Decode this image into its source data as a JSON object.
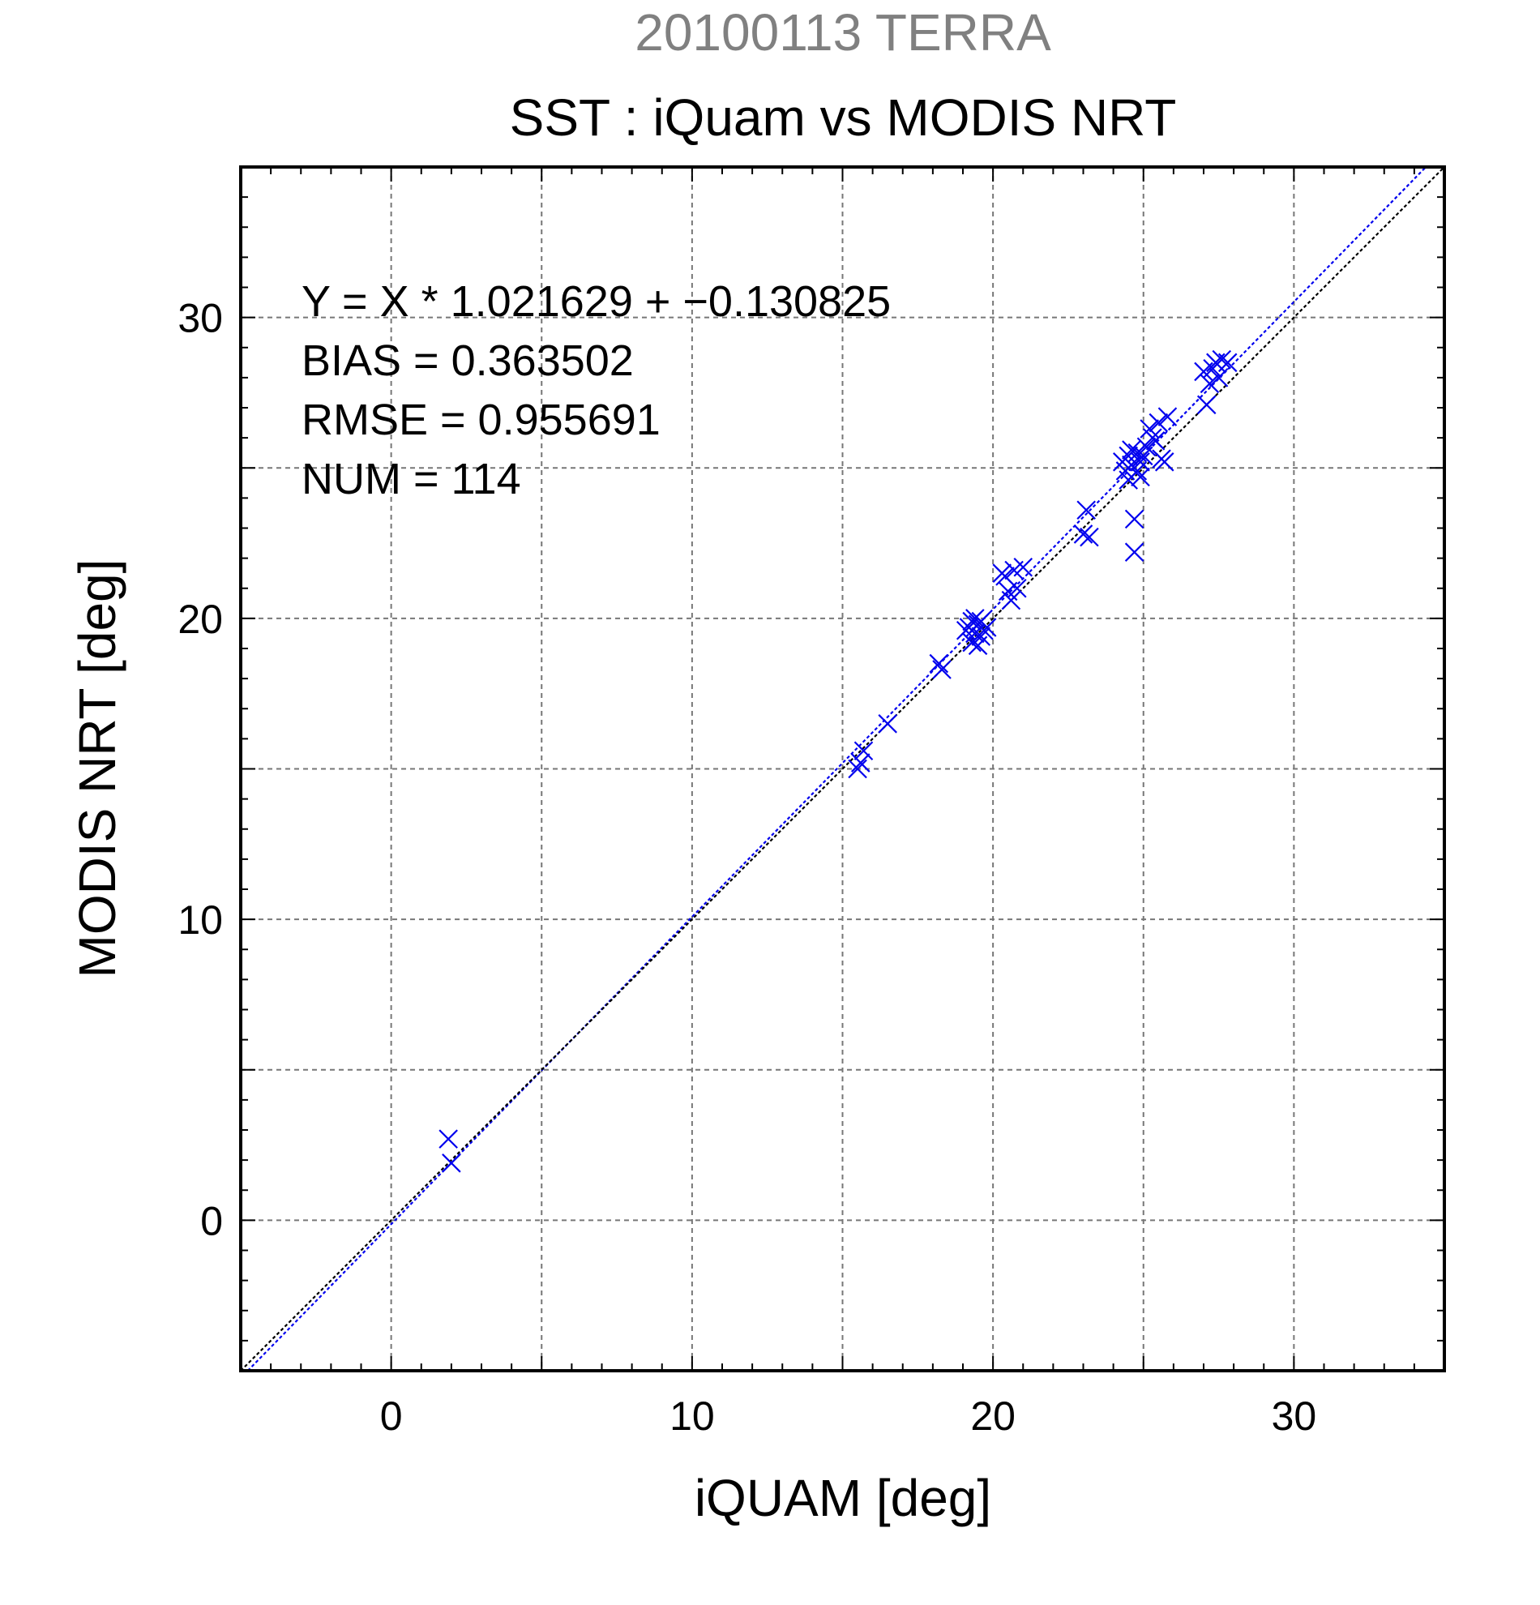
{
  "chart_data": {
    "type": "scatter",
    "title": "20100113 TERRA",
    "subtitle": "SST : iQuam vs MODIS NRT",
    "xlabel": "iQUAM [deg]",
    "ylabel": "MODIS NRT [deg]",
    "xlim": [
      -5,
      35
    ],
    "ylim": [
      -5,
      35
    ],
    "xticks": [
      0,
      10,
      20,
      30
    ],
    "yticks": [
      0,
      10,
      20,
      30
    ],
    "grid": true,
    "annotations": [
      "Y = X * 1.021629 + −0.130825",
      "BIAS = 0.363502",
      "RMSE = 0.955691",
      "NUM = 114"
    ],
    "lines": [
      {
        "name": "regression",
        "slope": 1.021629,
        "intercept": -0.130825,
        "color": "#0000ee",
        "style": "dotted"
      },
      {
        "name": "identity",
        "slope": 1,
        "intercept": 0,
        "color": "#000000",
        "style": "dotted"
      }
    ],
    "marker_color": "#0000ee",
    "series": [
      {
        "marker": "x",
        "x": [
          1.9,
          2.0,
          15.5,
          15.6,
          15.7,
          16.5,
          18.2,
          18.3,
          19.1,
          19.2,
          19.3,
          19.3,
          19.4,
          19.4,
          19.5,
          19.5,
          19.6,
          19.6,
          19.7,
          19.8,
          20.3,
          20.4,
          20.5,
          20.6,
          20.7,
          20.8,
          21.0,
          23.0,
          23.1,
          23.2,
          24.3,
          24.4,
          24.5,
          24.5,
          24.6,
          24.6,
          24.7,
          24.7,
          24.8,
          24.8,
          24.9,
          24.9,
          25.0,
          25.1,
          25.2,
          25.3,
          25.4,
          25.5,
          25.6,
          25.7,
          25.8,
          27.0,
          27.1,
          27.2,
          27.3,
          27.4,
          27.5,
          27.6,
          27.8
        ],
        "y": [
          2.7,
          1.9,
          15.0,
          15.2,
          15.6,
          16.5,
          18.5,
          18.3,
          19.6,
          19.7,
          19.9,
          19.2,
          20.0,
          19.5,
          19.1,
          19.8,
          19.4,
          19.9,
          19.6,
          19.7,
          21.5,
          21.4,
          20.9,
          20.6,
          21.6,
          21.0,
          21.7,
          22.8,
          23.6,
          22.7,
          25.2,
          24.9,
          25.4,
          24.6,
          25.1,
          25.6,
          22.2,
          23.3,
          24.9,
          25.5,
          25.2,
          24.7,
          25.4,
          25.7,
          26.3,
          26.0,
          25.9,
          26.5,
          25.3,
          25.2,
          26.7,
          28.2,
          27.1,
          27.8,
          28.3,
          28.5,
          28.0,
          28.6,
          28.5
        ]
      }
    ]
  }
}
